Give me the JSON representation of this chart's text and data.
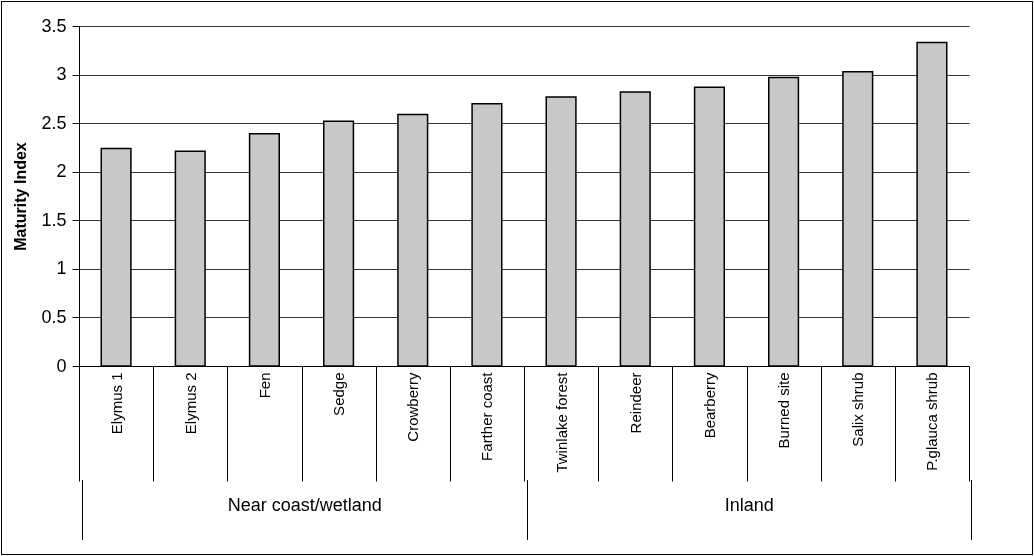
{
  "chart_data": {
    "type": "bar",
    "ylabel": "Maturity Index",
    "categories": [
      "Elymus 1",
      "Elymus 2",
      "Fen",
      "Sedge",
      "Crowberry",
      "Farther coast",
      "Twinlake forest",
      "Reindeer",
      "Bearberry",
      "Burned site",
      "Salix shrub",
      "P.glauca shrub"
    ],
    "values": [
      2.24,
      2.21,
      2.39,
      2.52,
      2.59,
      2.7,
      2.77,
      2.82,
      2.87,
      2.97,
      3.03,
      3.33
    ],
    "color": "#c8c8c8",
    "ylim": [
      0,
      3.5
    ],
    "yticks": [
      0,
      0.5,
      1,
      1.5,
      2,
      2.5,
      3,
      3.5
    ],
    "grid": "y",
    "annotations": [
      "Near coast/wetland",
      "Inland"
    ]
  }
}
